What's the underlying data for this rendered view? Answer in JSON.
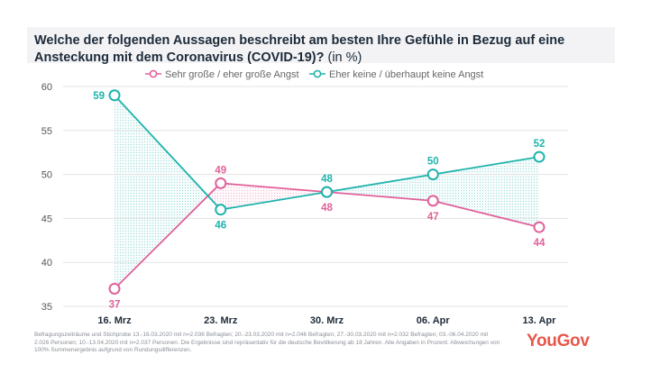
{
  "chart_data": {
    "type": "line",
    "title": "Welche der folgenden Aussagen beschreibt am besten Ihre Gefühle in Bezug auf eine Ansteckung mit dem Coronavirus (COVID-19)?",
    "subtitle": "(in %)",
    "categories": [
      "16. Mrz",
      "23. Mrz",
      "30. Mrz",
      "06. Apr",
      "13. Apr"
    ],
    "series": [
      {
        "name": "Sehr große / eher große Angst",
        "values": [
          37,
          49,
          48,
          47,
          44
        ],
        "color": "#e0619a",
        "label_position": [
          "below",
          "above",
          "below",
          "below",
          "below"
        ]
      },
      {
        "name": "Eher keine / überhaupt keine Angst",
        "values": [
          59,
          46,
          48,
          50,
          52
        ],
        "color": "#1fb3ac",
        "label_position": [
          "left",
          "below",
          "above",
          "above",
          "above"
        ]
      }
    ],
    "ylim": [
      35,
      60
    ],
    "yticks": [
      35,
      40,
      45,
      50,
      55,
      60
    ],
    "grid": true,
    "legend_position": "top",
    "fill_between": true
  },
  "footnote": "Befragungszeiträume und Stichprobe 13.-16.03.2020 mit n=2.036 Befragten; 20.-23.03.2020 mit n=2.046 Befragten; 27.-30.03.2020 mit n=2.032 Befragten; 03.-06.04.2020 mit 2.026 Personen; 10.-13.04.2020 mit n=2.037 Personen. Die Ergebnisse sind repräsentativ für die deutsche Bevölkerung ab 18 Jahren. Alle Angaben in Prozent. Abweichungen von 100% Summenergebnis aufgrund von Rundungsdifferenzen.",
  "brand": "YouGov"
}
